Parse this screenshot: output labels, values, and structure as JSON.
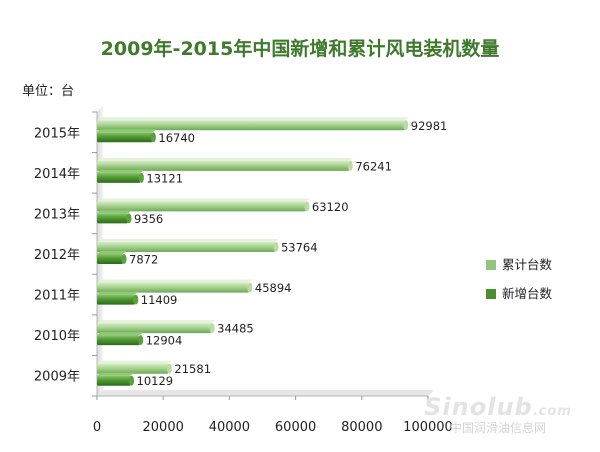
{
  "title": "2009年-2015年中国新增和累计风电装机数量",
  "unit_label": "单位：台",
  "watermark": {
    "brand": "Sinolub",
    "domain": ".com",
    "name": "中国润滑油信息网"
  },
  "colors": {
    "cumulative": "#92c47d",
    "new": "#4c8f2f"
  },
  "chart_data": {
    "type": "bar",
    "orientation": "horizontal",
    "categories": [
      "2009年",
      "2010年",
      "2011年",
      "2012年",
      "2013年",
      "2014年",
      "2015年"
    ],
    "series": [
      {
        "name": "累计台数",
        "values": [
          21581,
          34485,
          45894,
          53764,
          63120,
          76241,
          92981
        ]
      },
      {
        "name": "新增台数",
        "values": [
          10129,
          12904,
          11409,
          7872,
          9356,
          13121,
          16740
        ]
      }
    ],
    "xlim": [
      0,
      100000
    ],
    "xticks": [
      "0",
      "20000",
      "40000",
      "60000",
      "80000",
      "100000"
    ],
    "legend": "right",
    "grid": false
  }
}
